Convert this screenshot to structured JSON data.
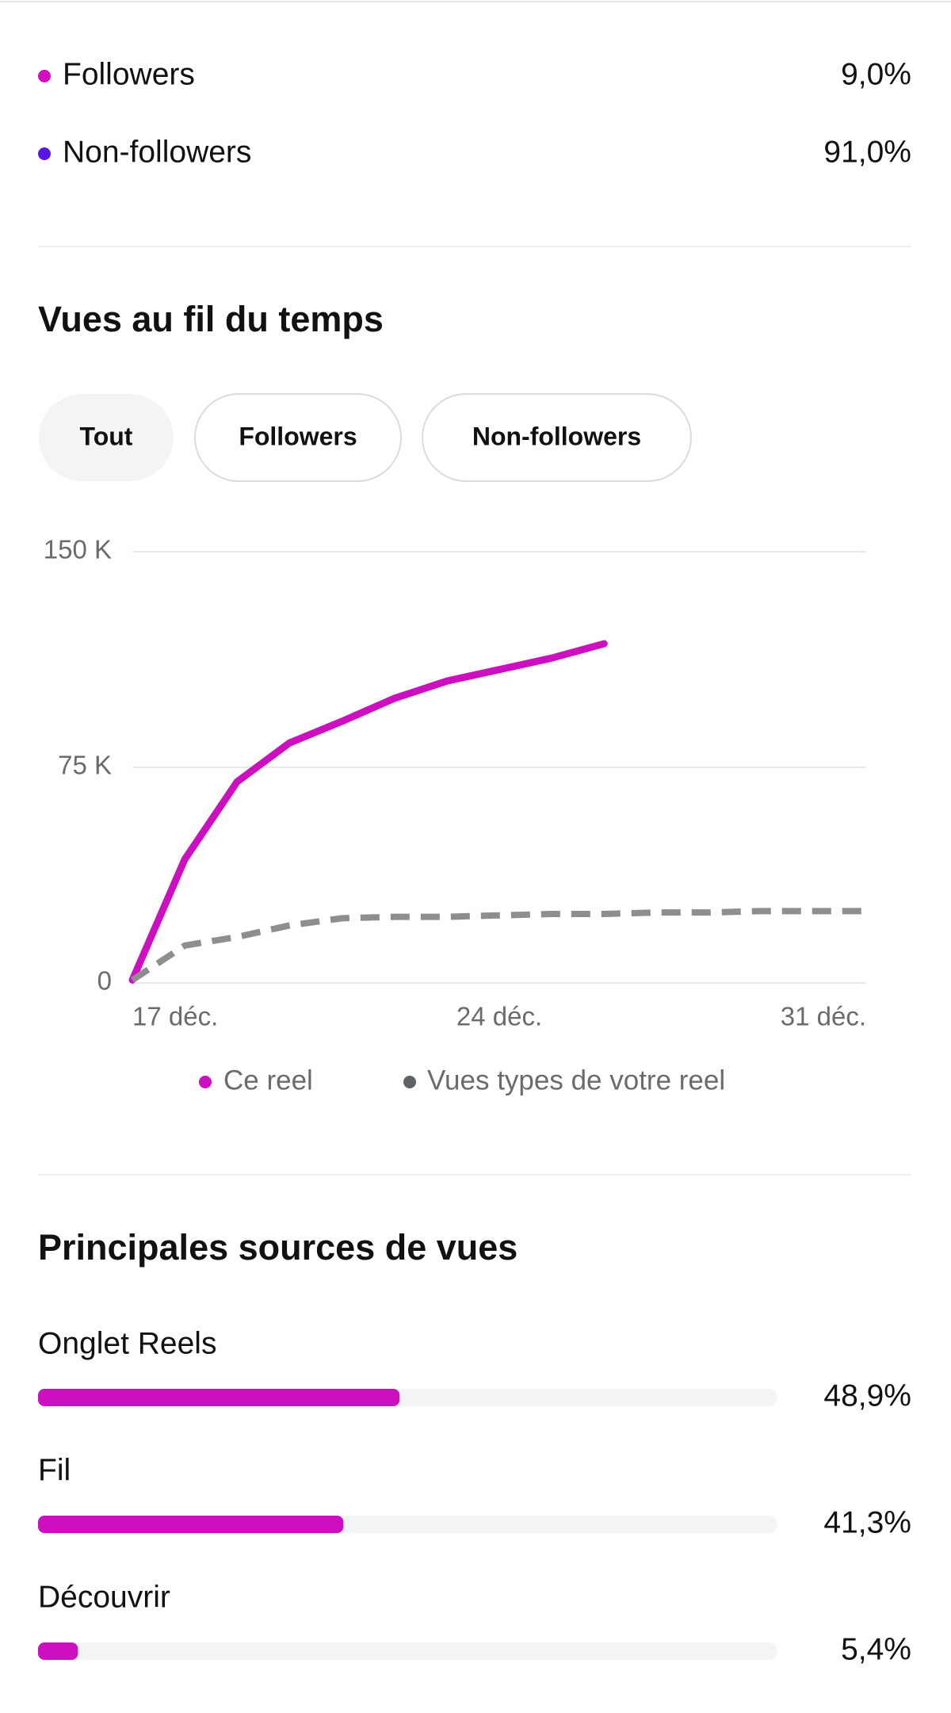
{
  "audience": {
    "items": [
      {
        "label": "Followers",
        "value": 9.0,
        "value_label": "9,0%",
        "color": "#d10ec0"
      },
      {
        "label": "Non-followers",
        "value": 91.0,
        "value_label": "91,0%",
        "color": "#5a16e0"
      }
    ]
  },
  "filters": [
    "Tout",
    "Followers",
    "Non-followers"
  ],
  "chart_data": [
    {
      "type": "line",
      "title": "Vues au fil du temps",
      "x": [
        17,
        18,
        19,
        20,
        21,
        22,
        23,
        24,
        25,
        26,
        27,
        28,
        29,
        30,
        31
      ],
      "xlim": [
        17,
        31
      ],
      "xticks": [
        {
          "value": 17,
          "label": "17 déc."
        },
        {
          "value": 24,
          "label": "24 déc."
        },
        {
          "value": 31,
          "label": "31 déc."
        }
      ],
      "ylim": [
        0,
        150000
      ],
      "yticks": [
        {
          "value": 0,
          "label": "0"
        },
        {
          "value": 75000,
          "label": "75 K"
        },
        {
          "value": 150000,
          "label": "150 K"
        }
      ],
      "grid": true,
      "series": [
        {
          "name": "Ce reel",
          "color": "#cc0fbf",
          "values": [
            1000,
            43000,
            70000,
            83500,
            91000,
            99000,
            105000,
            109000,
            113000,
            118000,
            null,
            null,
            null,
            null,
            null
          ]
        },
        {
          "name": "Vues types de votre reel",
          "color": "#8e8e8e",
          "dashed": true,
          "values": [
            1000,
            13000,
            16000,
            20000,
            22500,
            23000,
            23000,
            23500,
            24000,
            24000,
            24500,
            24500,
            25000,
            25000,
            25000
          ]
        }
      ]
    },
    {
      "type": "hbar",
      "title": "Principales sources de vues",
      "xlim": [
        0,
        100
      ],
      "color": "#cc0fbf",
      "categories": [
        "Onglet Reels",
        "Fil",
        "Découvrir"
      ],
      "values": [
        48.9,
        41.3,
        5.4
      ],
      "value_labels": [
        "48,9%",
        "41,3%",
        "5,4%"
      ]
    }
  ]
}
